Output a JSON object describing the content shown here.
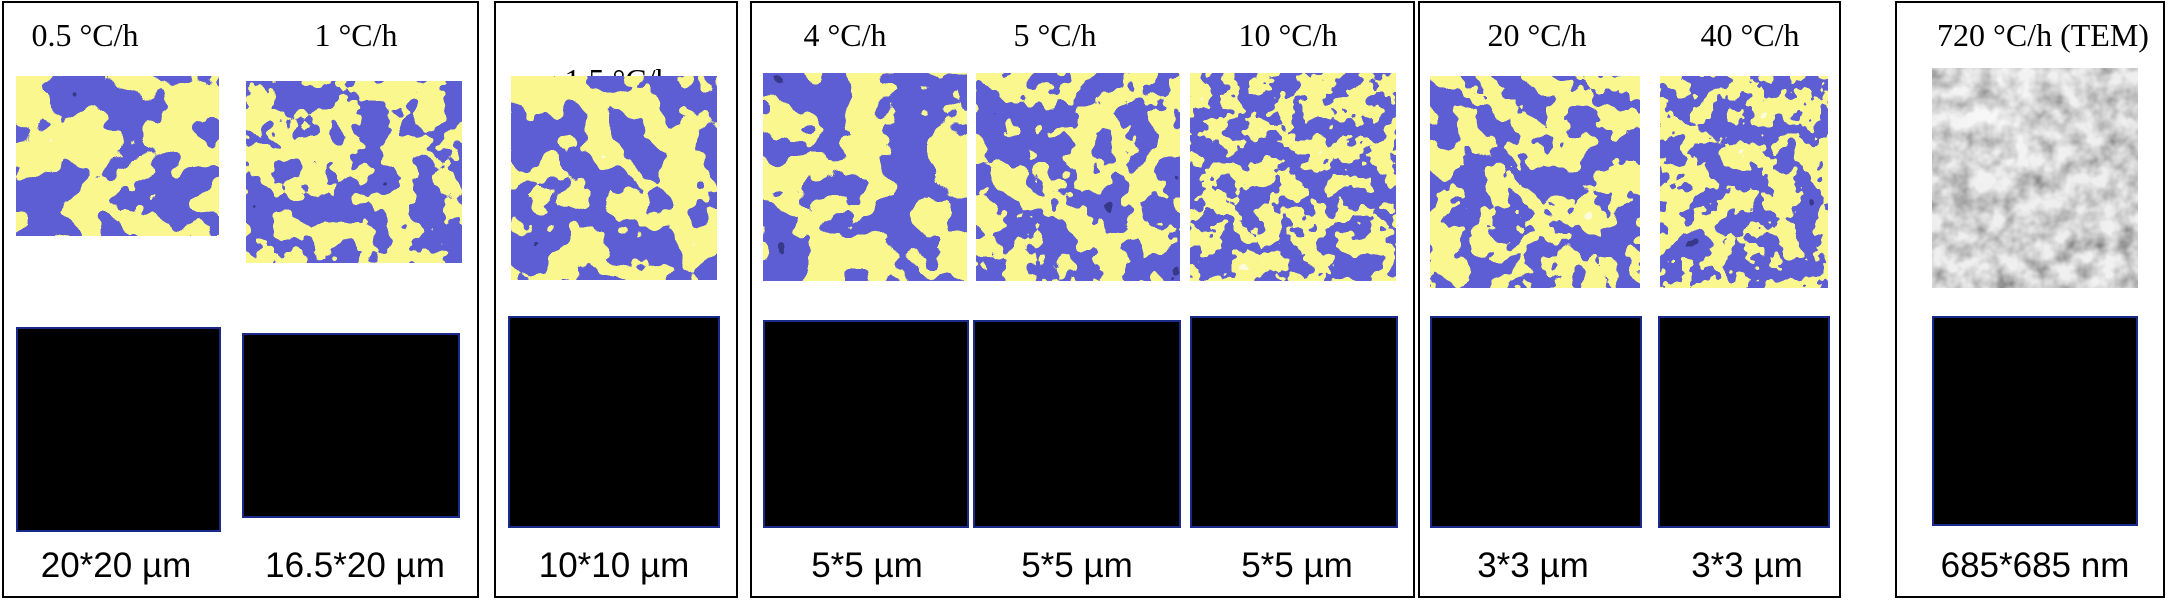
{
  "figure": {
    "groups": [
      {
        "columns": [
          {
            "rate": "0.5 °C/h",
            "scale": "20*20 µm",
            "colormap": "afm"
          },
          {
            "rate": "1 °C/h",
            "scale": "16.5*20 µm",
            "colormap": "afm"
          }
        ]
      },
      {
        "columns": [
          {
            "rate": "1.5 °C/h",
            "scale": "10*10 µm",
            "colormap": "afm"
          }
        ]
      },
      {
        "columns": [
          {
            "rate": "4 °C/h",
            "scale": "5*5 µm",
            "colormap": "afm"
          },
          {
            "rate": "5 °C/h",
            "scale": "5*5 µm",
            "colormap": "afm"
          },
          {
            "rate": "10 °C/h",
            "scale": "5*5 µm",
            "colormap": "afm"
          }
        ]
      },
      {
        "columns": [
          {
            "rate": "20 °C/h",
            "scale": "3*3 µm",
            "colormap": "afm"
          },
          {
            "rate": "40 °C/h",
            "scale": "3*3 µm",
            "colormap": "afm"
          }
        ]
      },
      {
        "columns": [
          {
            "rate": "720 °C/h (TEM)",
            "scale": "685*685 nm",
            "colormap": "tem"
          }
        ]
      }
    ],
    "colors": {
      "afm_blue": "#1c1ca8",
      "afm_yellow": "#f2ee46",
      "afm_dark": "#0a0a40",
      "tem_light": "#e0e0e0",
      "tem_dark": "#3c3c3c",
      "binary_black": "#000000",
      "binary_white": "#ffffff",
      "binary_frame": "#1a2a8a"
    }
  }
}
